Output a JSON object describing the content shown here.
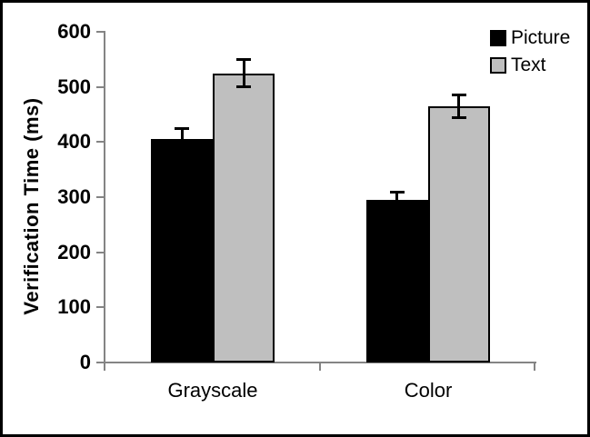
{
  "chart_data": {
    "type": "bar",
    "title": "",
    "xlabel": "",
    "ylabel": "Verification Time (ms)",
    "categories": [
      "Grayscale",
      "Color"
    ],
    "series": [
      {
        "name": "Picture",
        "color": "#000000",
        "values": [
          405,
          295
        ],
        "errors": [
          20,
          15
        ]
      },
      {
        "name": "Text",
        "color": "#bfbfbf",
        "values": [
          525,
          465
        ],
        "errors": [
          25,
          21
        ]
      }
    ],
    "ylim": [
      0,
      600
    ],
    "yticks": [
      0,
      100,
      200,
      300,
      400,
      500,
      600
    ],
    "grid": false,
    "error_bars": true,
    "legend_position": "top-right",
    "colors": {
      "axis": "#848484",
      "bar_border": "#000000",
      "error_bar": "#000000",
      "background": "#ffffff",
      "frame_border": "#000000"
    }
  }
}
